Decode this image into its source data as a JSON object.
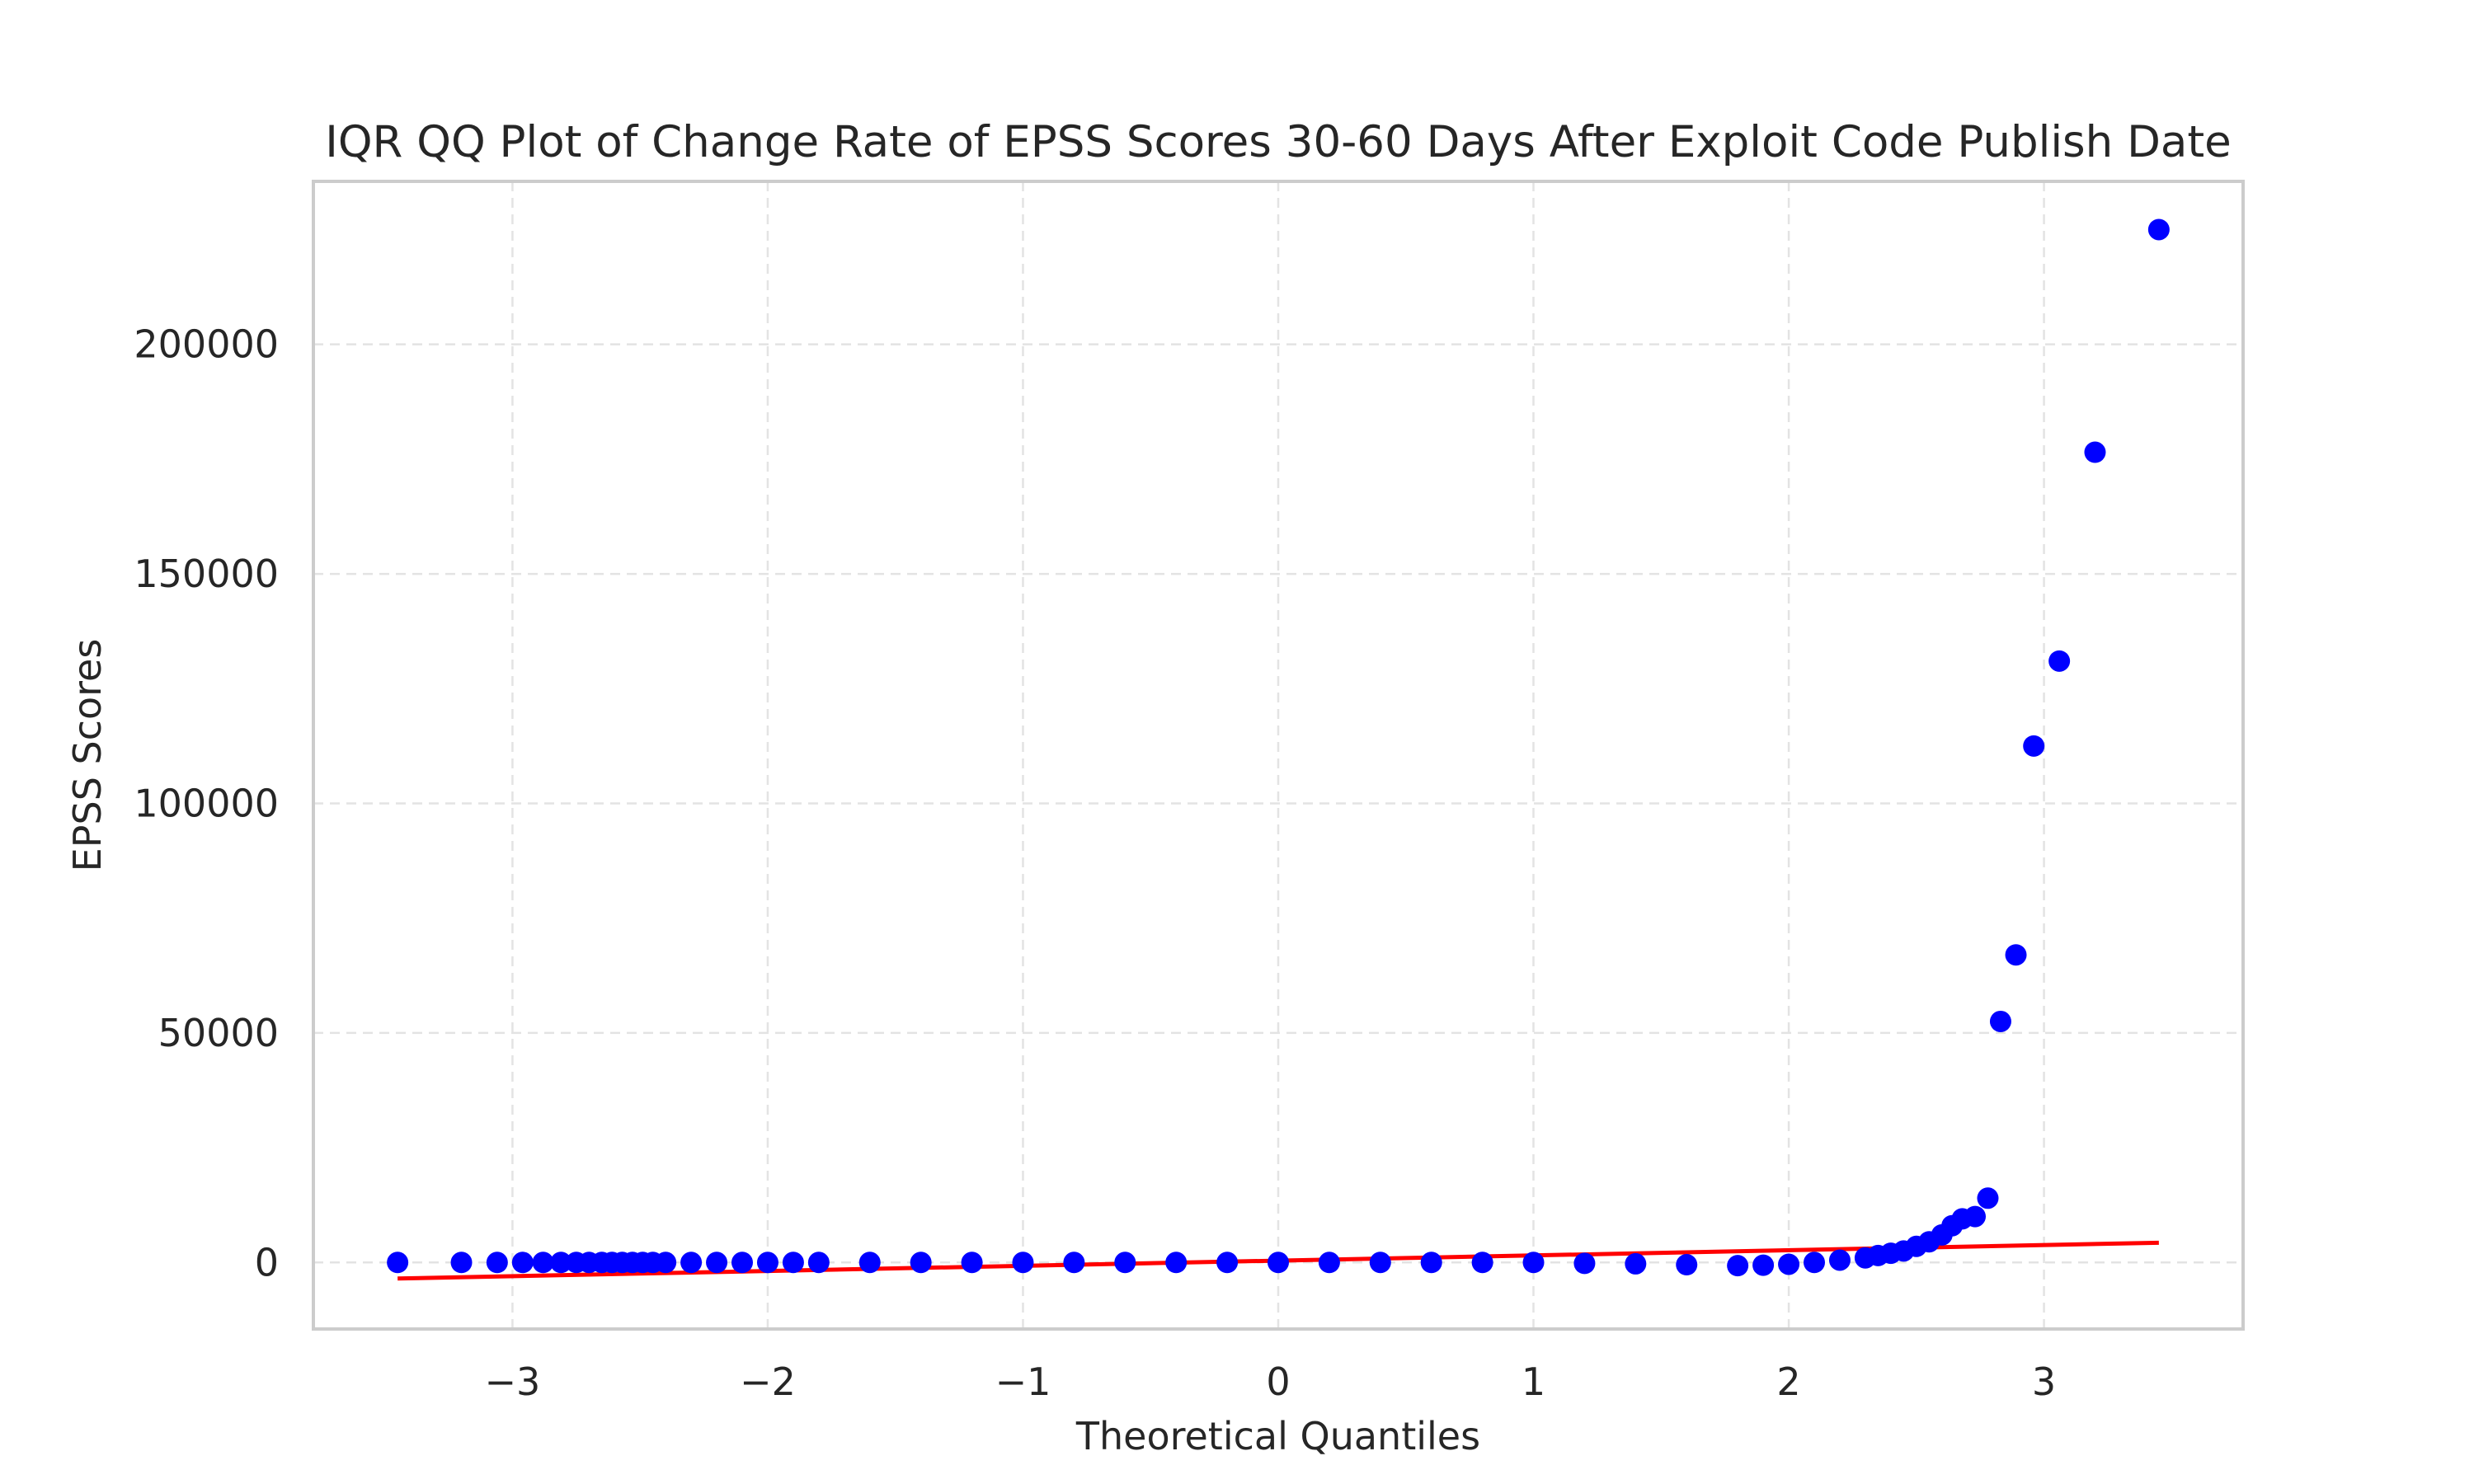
{
  "chart_data": {
    "type": "scatter",
    "title": "IQR QQ Plot of Change Rate of EPSS Scores 30-60 Days After Exploit Code Publish Date",
    "xlabel": "Theoretical Quantiles",
    "ylabel": "EPSS Scores",
    "xlim": [
      -3.78,
      3.78
    ],
    "ylim": [
      -14500,
      235500
    ],
    "xticks": [
      -3,
      -2,
      -1,
      0,
      1,
      2,
      3
    ],
    "xtick_labels": [
      "−3",
      "−2",
      "−1",
      "0",
      "1",
      "2",
      "3"
    ],
    "yticks": [
      0,
      50000,
      100000,
      150000,
      200000
    ],
    "ytick_labels": [
      "0",
      "50000",
      "100000",
      "150000",
      "200000"
    ],
    "grid": true,
    "series": [
      {
        "kind": "points",
        "color": "#0000ff",
        "points": [
          [
            -3.45,
            0
          ],
          [
            -3.2,
            0
          ],
          [
            -3.06,
            0
          ],
          [
            -2.96,
            0
          ],
          [
            -2.88,
            0
          ],
          [
            -2.81,
            0
          ],
          [
            -2.75,
            0
          ],
          [
            -2.7,
            0
          ],
          [
            -2.65,
            0
          ],
          [
            -2.61,
            0
          ],
          [
            -2.57,
            0
          ],
          [
            -2.53,
            0
          ],
          [
            -2.49,
            0
          ],
          [
            -2.45,
            0
          ],
          [
            -2.4,
            0
          ],
          [
            -2.3,
            0
          ],
          [
            -2.2,
            0
          ],
          [
            -2.1,
            0
          ],
          [
            -2.0,
            0
          ],
          [
            -1.9,
            0
          ],
          [
            -1.8,
            0
          ],
          [
            -1.6,
            0
          ],
          [
            -1.4,
            0
          ],
          [
            -1.2,
            0
          ],
          [
            -1.0,
            0
          ],
          [
            -0.8,
            0
          ],
          [
            -0.6,
            0
          ],
          [
            -0.4,
            0
          ],
          [
            -0.2,
            0
          ],
          [
            0.0,
            0
          ],
          [
            0.2,
            0
          ],
          [
            0.4,
            0
          ],
          [
            0.6,
            0
          ],
          [
            0.8,
            0
          ],
          [
            1.0,
            0
          ],
          [
            1.2,
            -200
          ],
          [
            1.4,
            -300
          ],
          [
            1.6,
            -500
          ],
          [
            1.8,
            -700
          ],
          [
            1.9,
            -600
          ],
          [
            2.0,
            -400
          ],
          [
            2.1,
            0
          ],
          [
            2.2,
            500
          ],
          [
            2.3,
            1000
          ],
          [
            2.35,
            1500
          ],
          [
            2.4,
            2000
          ],
          [
            2.45,
            2500
          ],
          [
            2.5,
            3500
          ],
          [
            2.55,
            4500
          ],
          [
            2.6,
            6000
          ],
          [
            2.64,
            8000
          ],
          [
            2.68,
            9500
          ],
          [
            2.73,
            10000
          ],
          [
            2.78,
            14000
          ],
          [
            2.83,
            52500
          ],
          [
            2.89,
            67000
          ],
          [
            2.96,
            112500
          ],
          [
            3.06,
            131000
          ],
          [
            3.2,
            176500
          ],
          [
            3.45,
            225000
          ]
        ]
      },
      {
        "kind": "fit-line",
        "color": "#ff0000",
        "points": [
          [
            -3.45,
            -3500
          ],
          [
            3.45,
            4300
          ]
        ]
      }
    ]
  }
}
